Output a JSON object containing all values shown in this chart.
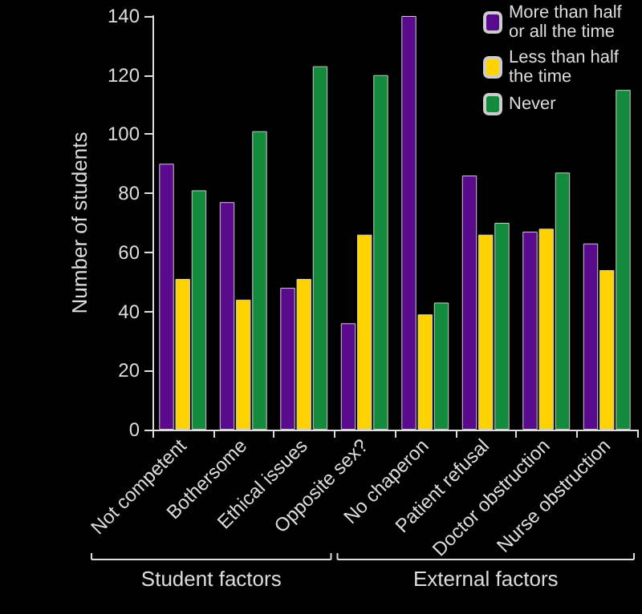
{
  "chart_data": {
    "type": "bar",
    "ylabel": "Number of students",
    "categories": [
      "Not competent",
      "Bothersome",
      "Ethical issues",
      "Opposite sex?",
      "No chaperon",
      "Patient refusal",
      "Doctor obstruction",
      "Nurse obstruction"
    ],
    "series": [
      {
        "name": "More than half or all the time",
        "color": "#5a0a8c",
        "values": [
          90,
          77,
          48,
          36,
          140,
          86,
          67,
          63
        ]
      },
      {
        "name": "Less than half the time",
        "color": "#ffd200",
        "values": [
          51,
          44,
          51,
          66,
          39,
          66,
          68,
          54
        ]
      },
      {
        "name": "Never",
        "color": "#138a3c",
        "values": [
          81,
          101,
          123,
          120,
          43,
          70,
          87,
          115
        ]
      }
    ],
    "ylim": [
      0,
      140
    ],
    "yticks": [
      0,
      20,
      40,
      60,
      80,
      100,
      120,
      140
    ],
    "grid": false,
    "legend": "top right",
    "annotations": [
      "Student factors",
      "External factors"
    ]
  }
}
